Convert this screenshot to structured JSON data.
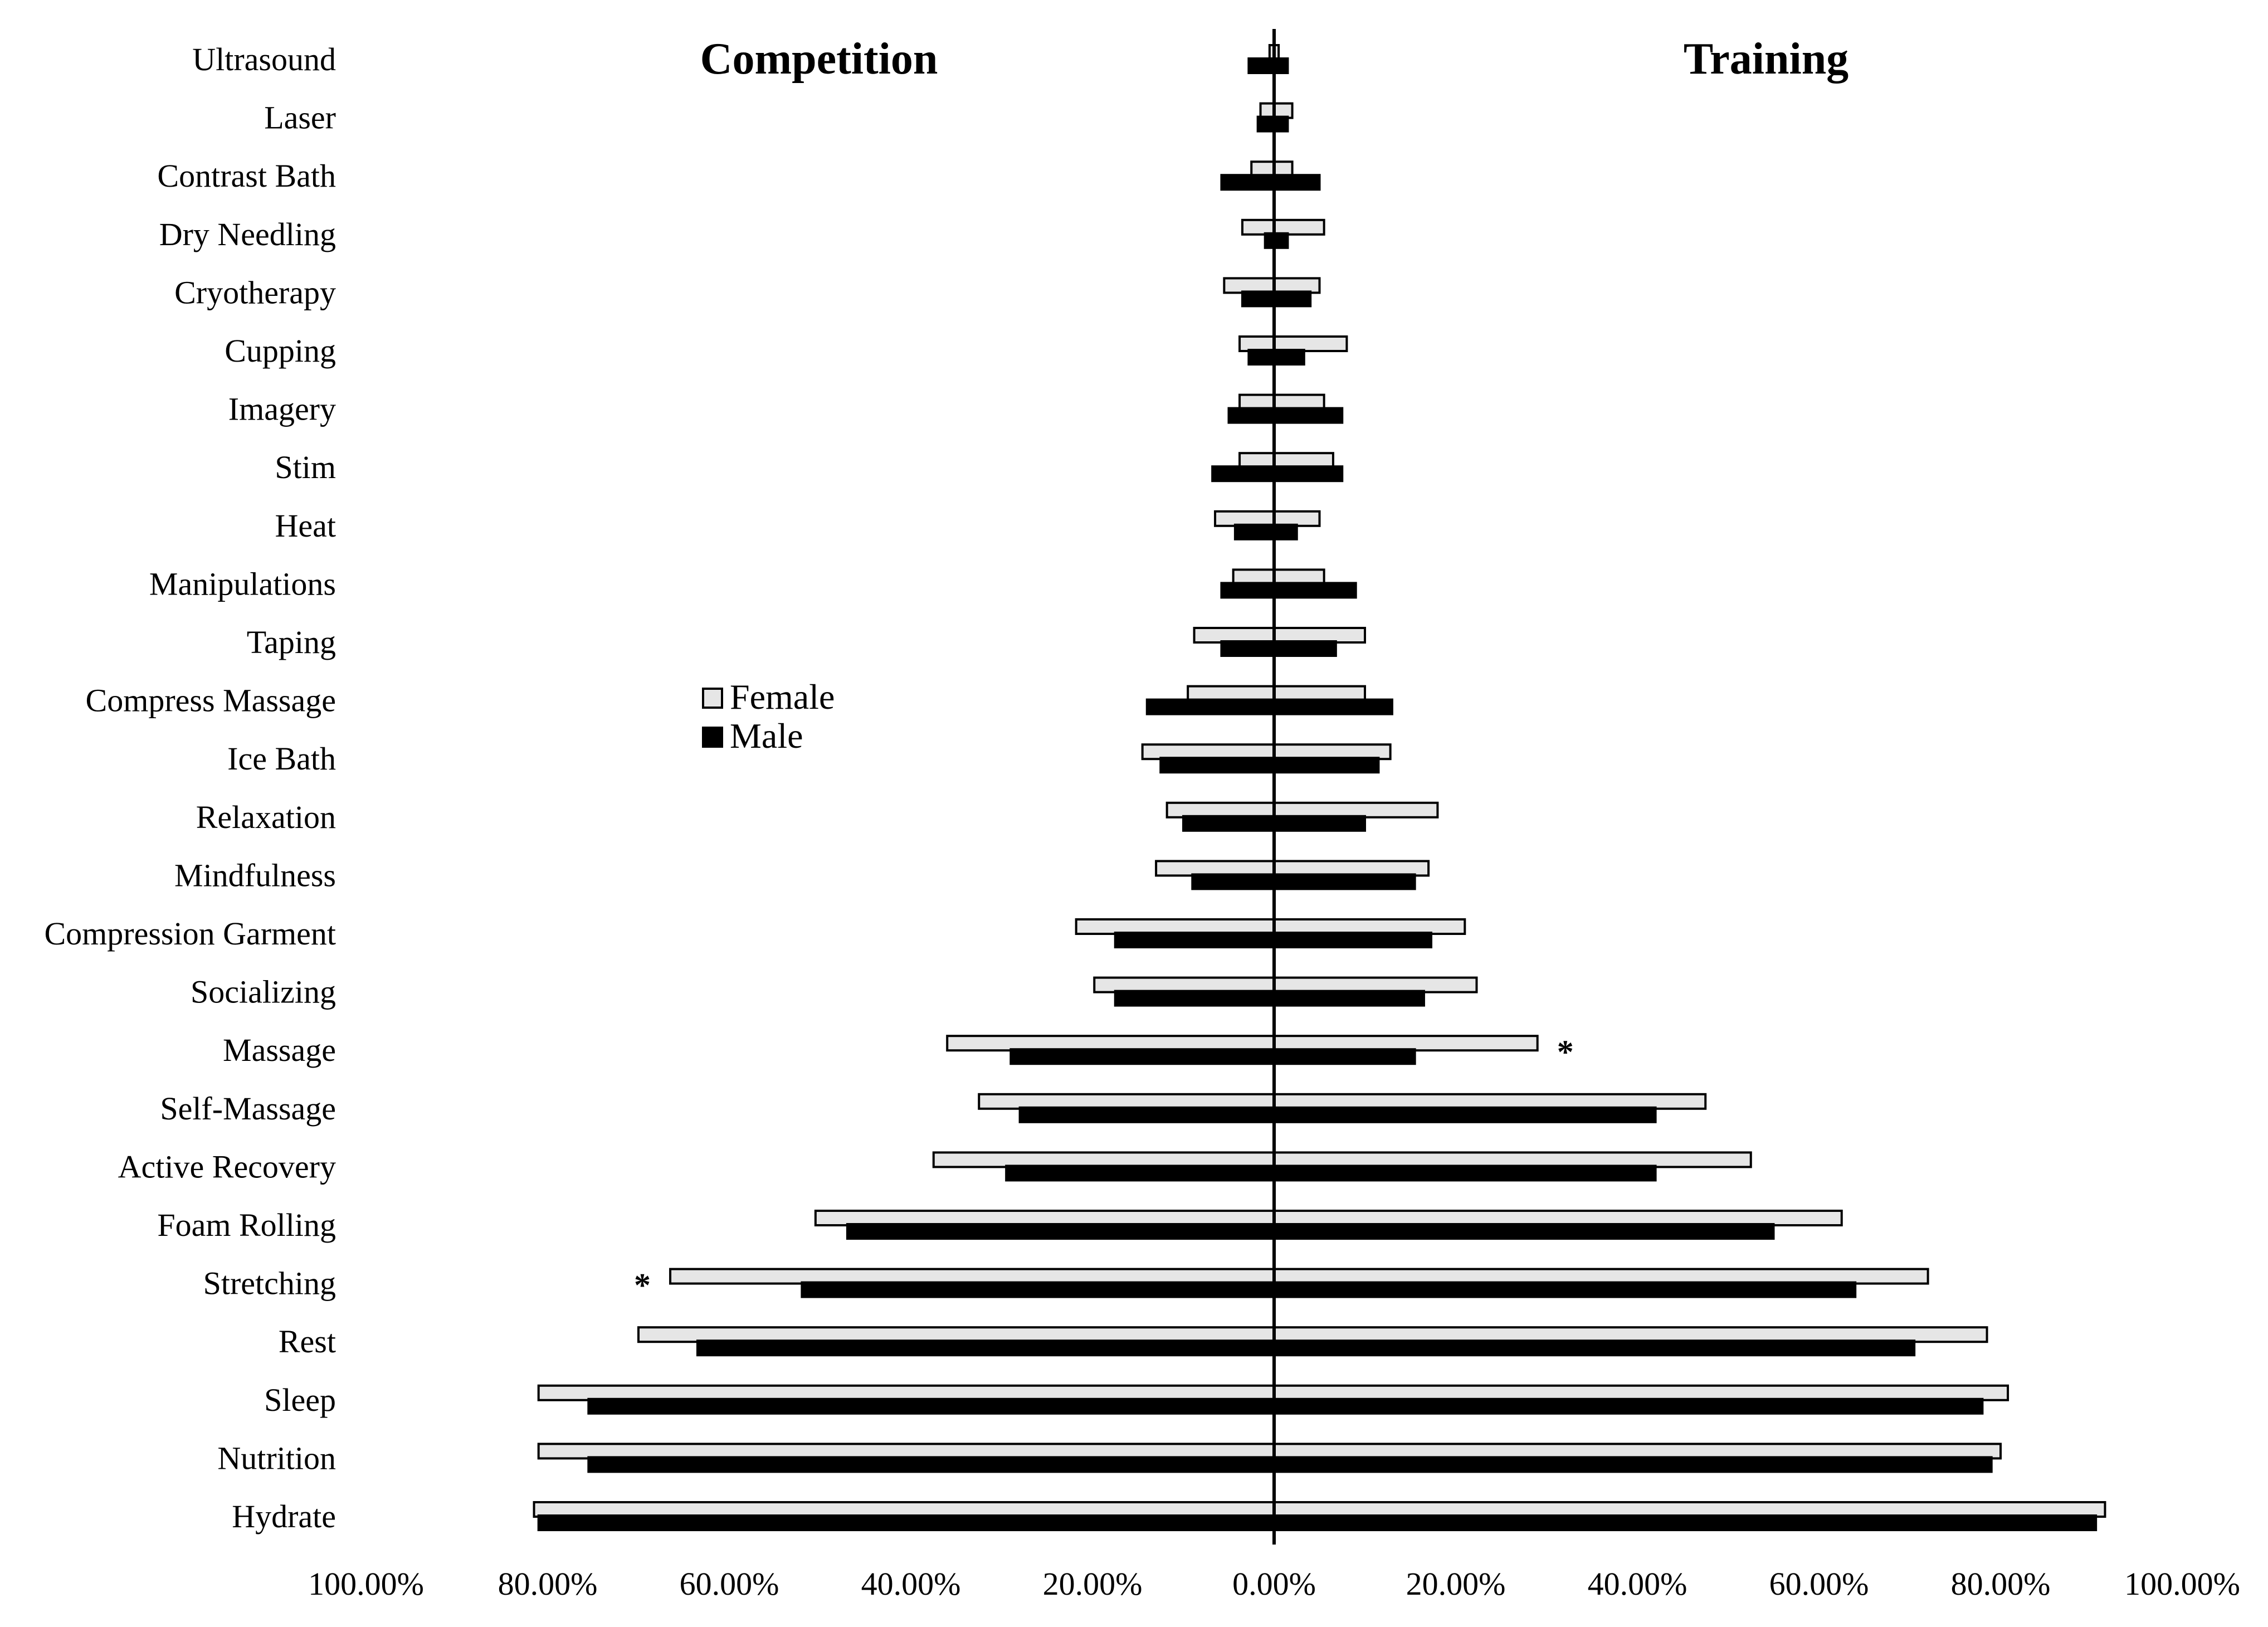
{
  "chart_data": {
    "type": "bar",
    "orientation": "horizontal-diverging",
    "panels": [
      {
        "title": "Competition",
        "side": "left"
      },
      {
        "title": "Training",
        "side": "right"
      }
    ],
    "categories": [
      "Ultrasound",
      "Laser",
      "Contrast Bath",
      "Dry Needling",
      "Cryotherapy",
      "Cupping",
      "Imagery",
      "Stim",
      "Heat",
      "Manipulations",
      "Taping",
      "Compress Massage",
      "Ice Bath",
      "Relaxation",
      "Mindfulness",
      "Compression Garment",
      "Socializing",
      "Massage",
      "Self-Massage",
      "Active Recovery",
      "Foam Rolling",
      "Stretching",
      "Rest",
      "Sleep",
      "Nutrition",
      "Hydrate"
    ],
    "series": [
      {
        "name": "Female",
        "color": "#e6e6e6",
        "competition": [
          0.5,
          1.5,
          2.5,
          3.5,
          5.5,
          3.8,
          3.8,
          3.8,
          6.5,
          4.5,
          8.8,
          9.5,
          14.5,
          11.8,
          13.0,
          21.8,
          19.8,
          36.0,
          32.5,
          37.5,
          50.5,
          66.5,
          70.0,
          81.0,
          81.0,
          81.5
        ],
        "training": [
          0.5,
          2.0,
          2.0,
          5.5,
          5.0,
          8.0,
          5.5,
          6.5,
          5.0,
          5.5,
          10.0,
          10.0,
          12.8,
          18.0,
          17.0,
          21.0,
          22.3,
          29.0,
          47.5,
          52.5,
          62.5,
          72.0,
          78.5,
          80.8,
          80.0,
          91.5
        ]
      },
      {
        "name": "Male",
        "color": "#000000",
        "competition": [
          2.8,
          1.8,
          5.8,
          1.0,
          3.5,
          2.8,
          5.0,
          6.8,
          4.3,
          5.8,
          5.8,
          14.0,
          12.5,
          10.0,
          9.0,
          17.5,
          17.5,
          29.0,
          28.0,
          29.5,
          47.0,
          52.0,
          63.5,
          75.5,
          75.5,
          81.0
        ],
        "training": [
          1.5,
          1.5,
          5.0,
          1.5,
          4.0,
          3.3,
          7.5,
          7.5,
          2.5,
          9.0,
          6.8,
          13.0,
          11.5,
          10.0,
          15.5,
          17.3,
          16.5,
          15.5,
          42.0,
          42.0,
          55.0,
          64.0,
          70.5,
          78.0,
          79.0,
          90.5
        ]
      }
    ],
    "significance": [
      {
        "category": "Massage",
        "panel": "Training",
        "marker": "*"
      },
      {
        "category": "Stretching",
        "panel": "Competition",
        "marker": "*"
      }
    ],
    "x_tick_labels": [
      "100.00%",
      "80.00%",
      "60.00%",
      "40.00%",
      "20.00%",
      "0.00%",
      "20.00%",
      "40.00%",
      "60.00%",
      "80.00%",
      "100.00%"
    ],
    "xlim": [
      -100,
      100
    ],
    "xlabel": "",
    "ylabel": "",
    "grid": false,
    "legend": {
      "placement": "center-left",
      "entries": [
        "Female",
        "Male"
      ]
    }
  }
}
